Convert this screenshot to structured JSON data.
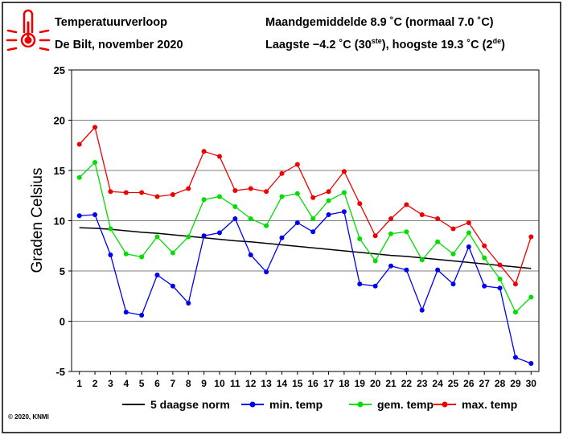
{
  "header": {
    "title": "Temperatuurverloop",
    "station": "De Bilt, november 2020",
    "monthly_avg": "Maandgemiddelde 8.9 ˚C (normaal 7.0 ˚C)",
    "extremes_pre": "Laagste −4.2 ˚C (30",
    "extremes_sup1": "ste",
    "extremes_mid": "), hoogste 19.3 ˚C (2",
    "extremes_sup2": "de",
    "extremes_post": ")"
  },
  "copyright": "© 2020, KNMI",
  "colors": {
    "norm": "#000000",
    "min": "#0000ee",
    "gem": "#00dd00",
    "max": "#ee0000",
    "thermometer": "#ee0000"
  },
  "chart_data": {
    "type": "line",
    "ylabel": "Graden Celsius",
    "xlabel": "",
    "x": [
      1,
      2,
      3,
      4,
      5,
      6,
      7,
      8,
      9,
      10,
      11,
      12,
      13,
      14,
      15,
      16,
      17,
      18,
      19,
      20,
      21,
      22,
      23,
      24,
      25,
      26,
      27,
      28,
      29,
      30
    ],
    "xlim": [
      0.5,
      30.5
    ],
    "ylim": [
      -5,
      25
    ],
    "yticks": [
      -5,
      0,
      5,
      10,
      15,
      20,
      25
    ],
    "grid": true,
    "legend_position": "bottom",
    "series": [
      {
        "name": "5 daagse norm",
        "color": "#000000",
        "markers": false,
        "values": [
          9.3,
          9.25,
          9.15,
          9.0,
          8.85,
          8.75,
          8.6,
          8.45,
          8.3,
          8.15,
          8.0,
          7.9,
          7.75,
          7.6,
          7.45,
          7.3,
          7.15,
          7.0,
          6.85,
          6.7,
          6.55,
          6.45,
          6.3,
          6.15,
          6.0,
          5.85,
          5.7,
          5.55,
          5.4,
          5.25
        ]
      },
      {
        "name": "min. temp",
        "color": "#0000ee",
        "markers": true,
        "values": [
          10.5,
          10.6,
          6.6,
          0.9,
          0.6,
          4.6,
          3.5,
          1.8,
          8.5,
          8.8,
          10.2,
          6.6,
          4.9,
          8.3,
          9.8,
          8.9,
          10.6,
          10.9,
          3.7,
          3.5,
          5.5,
          5.1,
          1.1,
          5.1,
          3.7,
          7.4,
          3.5,
          3.3,
          -3.6,
          -4.2
        ]
      },
      {
        "name": "gem. temp",
        "color": "#00dd00",
        "markers": true,
        "values": [
          14.3,
          15.8,
          9.2,
          6.7,
          6.4,
          8.4,
          6.8,
          8.4,
          12.1,
          12.4,
          11.4,
          10.2,
          9.5,
          12.4,
          12.7,
          10.2,
          12.0,
          12.8,
          8.2,
          6.0,
          8.7,
          8.9,
          6.1,
          7.9,
          6.7,
          8.8,
          6.3,
          4.2,
          0.9,
          2.4
        ]
      },
      {
        "name": "max. temp",
        "color": "#ee0000",
        "markers": true,
        "values": [
          17.6,
          19.3,
          12.9,
          12.8,
          12.8,
          12.4,
          12.6,
          13.2,
          16.9,
          16.4,
          13.0,
          13.2,
          12.9,
          14.7,
          15.6,
          12.3,
          12.9,
          14.9,
          11.7,
          8.5,
          10.2,
          11.6,
          10.6,
          10.2,
          9.2,
          9.8,
          7.5,
          5.6,
          3.7,
          8.4
        ]
      }
    ]
  }
}
